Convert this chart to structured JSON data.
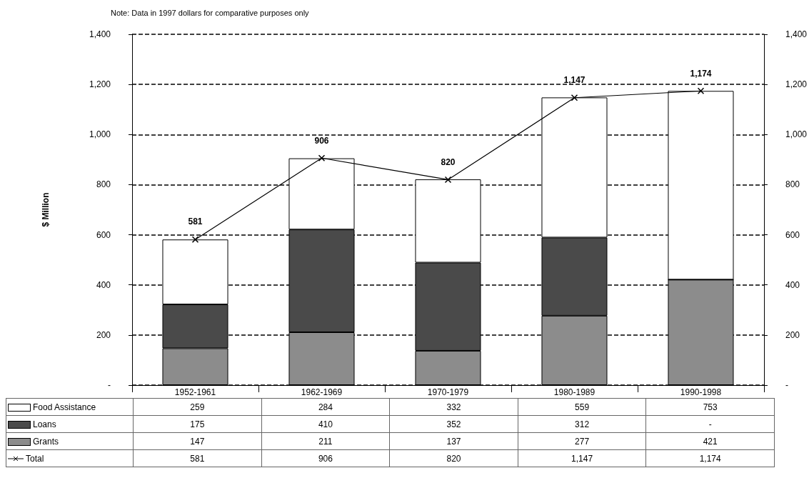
{
  "chart_data": {
    "type": "bar",
    "stacked": true,
    "ylabel": "$ Million",
    "annotations": [
      "Note: Data in 1997 dollars for comparative purposes only"
    ],
    "categories": [
      "1952-1961",
      "1962-1969",
      "1970-1979",
      "1980-1989",
      "1990-1998"
    ],
    "series": [
      {
        "name": "Grants",
        "color": "#8c8c8c",
        "values": [
          147,
          211,
          137,
          277,
          421
        ],
        "value_labels": [
          "147",
          "211",
          "137",
          "277",
          "421"
        ]
      },
      {
        "name": "Loans",
        "color": "#4a4a4a",
        "values": [
          175,
          410,
          352,
          312,
          0
        ],
        "value_labels": [
          "175",
          "410",
          "352",
          "312",
          "-"
        ]
      },
      {
        "name": "Food Assistance",
        "color": "#ffffff",
        "values": [
          259,
          284,
          332,
          559,
          753
        ],
        "value_labels": [
          "259",
          "284",
          "332",
          "559",
          "753"
        ]
      },
      {
        "name": "Total",
        "type": "line",
        "color": "#000000",
        "marker": "cross",
        "values": [
          581,
          906,
          820,
          1147,
          1174
        ],
        "value_labels": [
          "581",
          "906",
          "820",
          "1,147",
          "1,174"
        ]
      }
    ],
    "ylim": [
      0,
      1400
    ],
    "yticks": [
      {
        "value": 0,
        "label": "-"
      },
      200,
      400,
      600,
      800,
      {
        "value": 1000,
        "label": "1,000"
      },
      {
        "value": 1200,
        "label": "1,200"
      },
      {
        "value": 1400,
        "label": "1,400"
      }
    ],
    "y2lim": [
      0,
      1400
    ],
    "y2ticks": [
      {
        "value": 0,
        "label": "-"
      },
      200,
      400,
      600,
      800,
      {
        "value": 1000,
        "label": "1,000"
      },
      {
        "value": 1200,
        "label": "1,200"
      },
      {
        "value": 1400,
        "label": "1,400"
      }
    ],
    "grid": "y",
    "legend": "bottom left",
    "data_labels": true
  }
}
